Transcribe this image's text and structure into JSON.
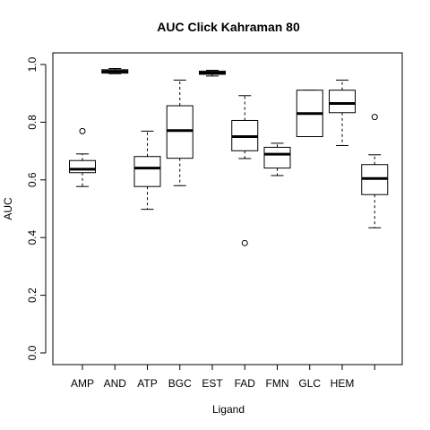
{
  "chart_data": {
    "type": "box",
    "title": "AUC Click Kahraman 80",
    "xlabel": "Ligand",
    "ylabel": "AUC",
    "ylim": [
      0,
      1
    ],
    "yticks": [
      0.0,
      0.2,
      0.4,
      0.6,
      0.8,
      1.0
    ],
    "ytick_labels": [
      "0.0",
      "0.2",
      "0.4",
      "0.6",
      "0.8",
      "1.0"
    ],
    "grid": false,
    "categories": [
      "AMP",
      "AND",
      "ATP",
      "BGC",
      "EST",
      "FAD",
      "FMN",
      "GLC",
      "HEM",
      ""
    ],
    "boxes": [
      {
        "min": 0.577,
        "q1": 0.625,
        "median": 0.637,
        "q3": 0.667,
        "max": 0.69,
        "outliers": [
          0.769
        ]
      },
      {
        "min": 0.968,
        "q1": 0.97,
        "median": 0.976,
        "q3": 0.982,
        "max": 0.986,
        "outliers": []
      },
      {
        "min": 0.498,
        "q1": 0.577,
        "median": 0.641,
        "q3": 0.681,
        "max": 0.769,
        "outliers": []
      },
      {
        "min": 0.58,
        "q1": 0.675,
        "median": 0.771,
        "q3": 0.857,
        "max": 0.946,
        "outliers": []
      },
      {
        "min": 0.96,
        "q1": 0.966,
        "median": 0.971,
        "q3": 0.977,
        "max": 0.98,
        "outliers": []
      },
      {
        "min": 0.674,
        "q1": 0.701,
        "median": 0.75,
        "q3": 0.806,
        "max": 0.892,
        "outliers": [
          0.381
        ]
      },
      {
        "min": 0.615,
        "q1": 0.641,
        "median": 0.689,
        "q3": 0.713,
        "max": 0.727,
        "outliers": []
      },
      {
        "min": 0.75,
        "q1": 0.75,
        "median": 0.83,
        "q3": 0.911,
        "max": 0.911,
        "outliers": []
      },
      {
        "min": 0.719,
        "q1": 0.833,
        "median": 0.865,
        "q3": 0.911,
        "max": 0.946,
        "outliers": []
      },
      {
        "min": 0.434,
        "q1": 0.549,
        "median": 0.605,
        "q3": 0.653,
        "max": 0.687,
        "outliers": [
          0.818
        ]
      }
    ]
  }
}
